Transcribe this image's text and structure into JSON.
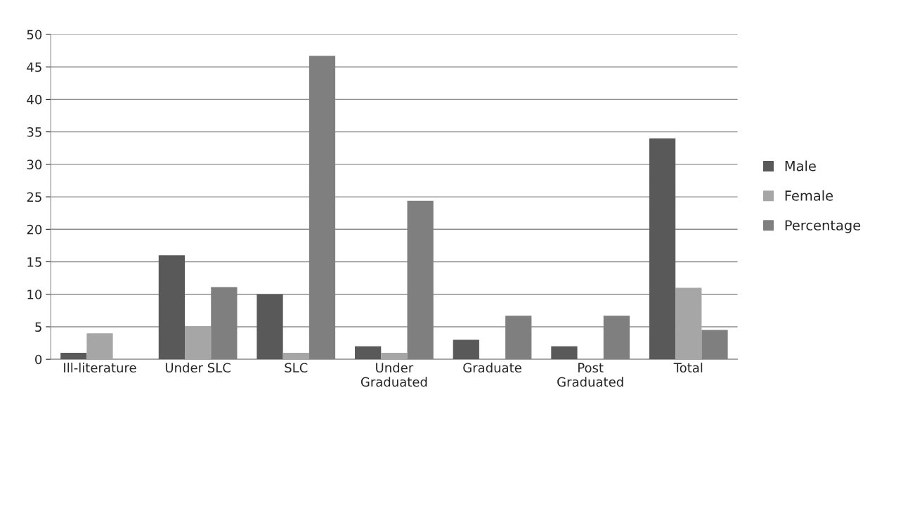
{
  "chart_data": {
    "type": "bar",
    "categories": [
      "Ill-literature",
      "Under SLC",
      "SLC",
      "Under\nGraduated",
      "Graduate",
      "Post\nGraduated",
      "Total"
    ],
    "series": [
      {
        "name": "Male",
        "color": "#595959",
        "values": [
          1,
          16,
          10,
          2,
          3,
          2,
          34
        ]
      },
      {
        "name": "Female",
        "color": "#a6a6a6",
        "values": [
          4,
          5,
          1,
          1,
          null,
          null,
          11
        ]
      },
      {
        "name": "Percentage",
        "color": "#7f7f7f",
        "values": [
          null,
          11.1,
          46.7,
          24.4,
          6.7,
          6.7,
          4.5
        ]
      }
    ],
    "ylim": [
      0,
      50
    ],
    "yticks": [
      0,
      5,
      10,
      15,
      20,
      25,
      30,
      35,
      40,
      45,
      50
    ],
    "grid": "y",
    "legend": "right"
  }
}
